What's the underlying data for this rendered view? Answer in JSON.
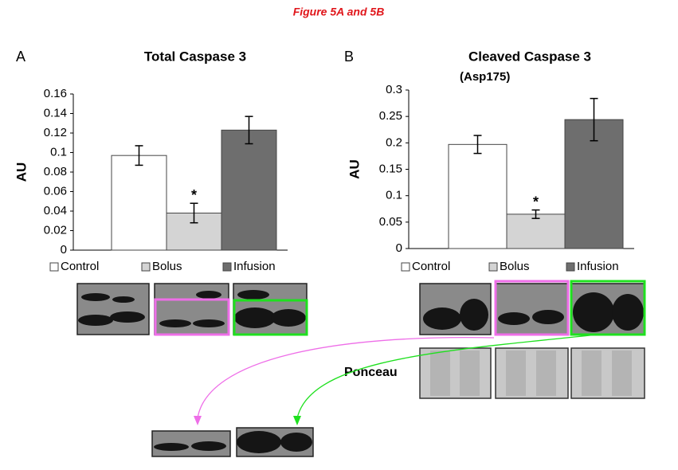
{
  "title": "Figure 5A and 5B",
  "blot_label": "Ponceau",
  "chart_data": [
    {
      "type": "bar",
      "panel": "A",
      "title": "Total Caspase 3",
      "ylabel": "AU",
      "categories": [
        "Control",
        "Bolus",
        "Infusion"
      ],
      "values": [
        0.097,
        0.038,
        0.123
      ],
      "errors": [
        0.01,
        0.01,
        0.014
      ],
      "colors": [
        "#ffffff",
        "#d4d4d4",
        "#6e6e6e"
      ],
      "markers": [
        null,
        "*",
        null
      ],
      "ylim": [
        0,
        0.16
      ],
      "yticks": [
        0,
        0.02,
        0.04,
        0.06,
        0.08,
        0.1,
        0.12,
        0.14,
        0.16
      ]
    },
    {
      "type": "bar",
      "panel": "B",
      "title": "Cleaved Caspase 3",
      "subtitle": "(Asp175)",
      "ylabel": "AU",
      "categories": [
        "Control",
        "Bolus",
        "Infusion"
      ],
      "values": [
        0.197,
        0.065,
        0.244
      ],
      "errors": [
        0.017,
        0.008,
        0.04
      ],
      "colors": [
        "#ffffff",
        "#d4d4d4",
        "#6e6e6e"
      ],
      "markers": [
        null,
        "*",
        null
      ],
      "ylim": [
        0,
        0.3
      ],
      "yticks": [
        0,
        0.05,
        0.1,
        0.15,
        0.2,
        0.25,
        0.3
      ]
    }
  ]
}
